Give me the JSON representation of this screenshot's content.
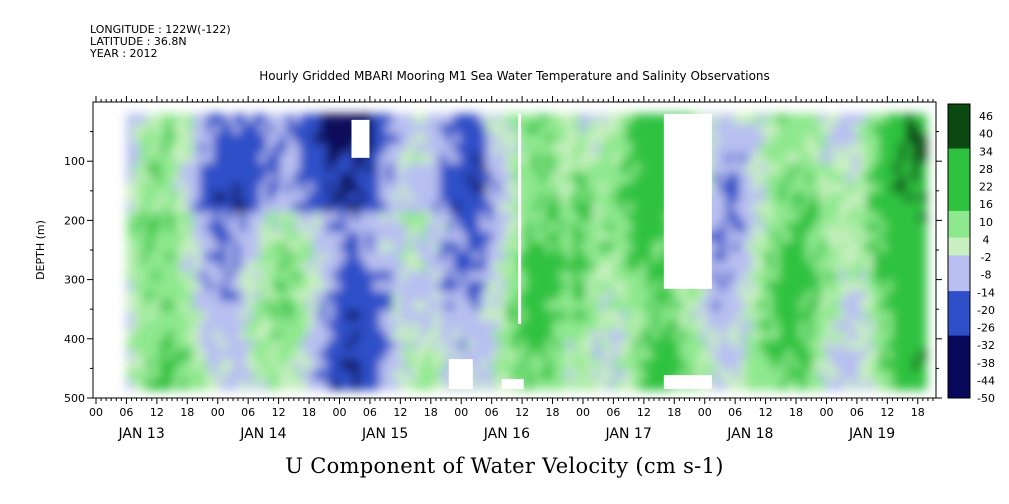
{
  "header": {
    "longitude": "LONGITUDE : 122W(-122)",
    "latitude": "LATITUDE : 36.8N",
    "year": "YEAR : 2012"
  },
  "chart_data": {
    "type": "heatmap",
    "title": "Hourly Gridded MBARI Mooring M1 Sea Water Temperature and Salinity Observations",
    "xlabel": "U Component of Water Velocity (cm s-1)",
    "ylabel": "DEPTH (m)",
    "ylim": [
      500,
      0
    ],
    "y_ticks": [
      "100",
      "200",
      "300",
      "400",
      "500"
    ],
    "hour_ticks": [
      "00",
      "06",
      "12",
      "18",
      "00",
      "06",
      "12",
      "18",
      "00",
      "06",
      "12",
      "18",
      "00",
      "06",
      "12",
      "18",
      "00",
      "06",
      "12",
      "18",
      "00",
      "06",
      "12",
      "18",
      "00",
      "06",
      "12",
      "18"
    ],
    "day_labels": [
      "JAN 13",
      "JAN 14",
      "JAN 15",
      "JAN 16",
      "JAN 17",
      "JAN 18",
      "JAN 19"
    ],
    "colorbar": {
      "labels": [
        "46",
        "40",
        "34",
        "28",
        "22",
        "16",
        "10",
        "4",
        "-2",
        "-8",
        "-14",
        "-20",
        "-26",
        "-32",
        "-38",
        "-44",
        "-50"
      ],
      "range": [
        -50,
        49
      ],
      "colors": {
        "min": "#08085a",
        "neg_strong": "#2f4fc8",
        "neg_weak": "#b8bff0",
        "zero": "#c8f0c0",
        "pos_weak": "#8ee88e",
        "pos_strong": "#2fc23f",
        "max": "#0a4a12"
      }
    },
    "data_start": "2012-01-13T06:00",
    "data_end": "2012-01-19T23:00",
    "depth_range": [
      20,
      485
    ],
    "missing_regions_note": "white gaps where no data"
  }
}
